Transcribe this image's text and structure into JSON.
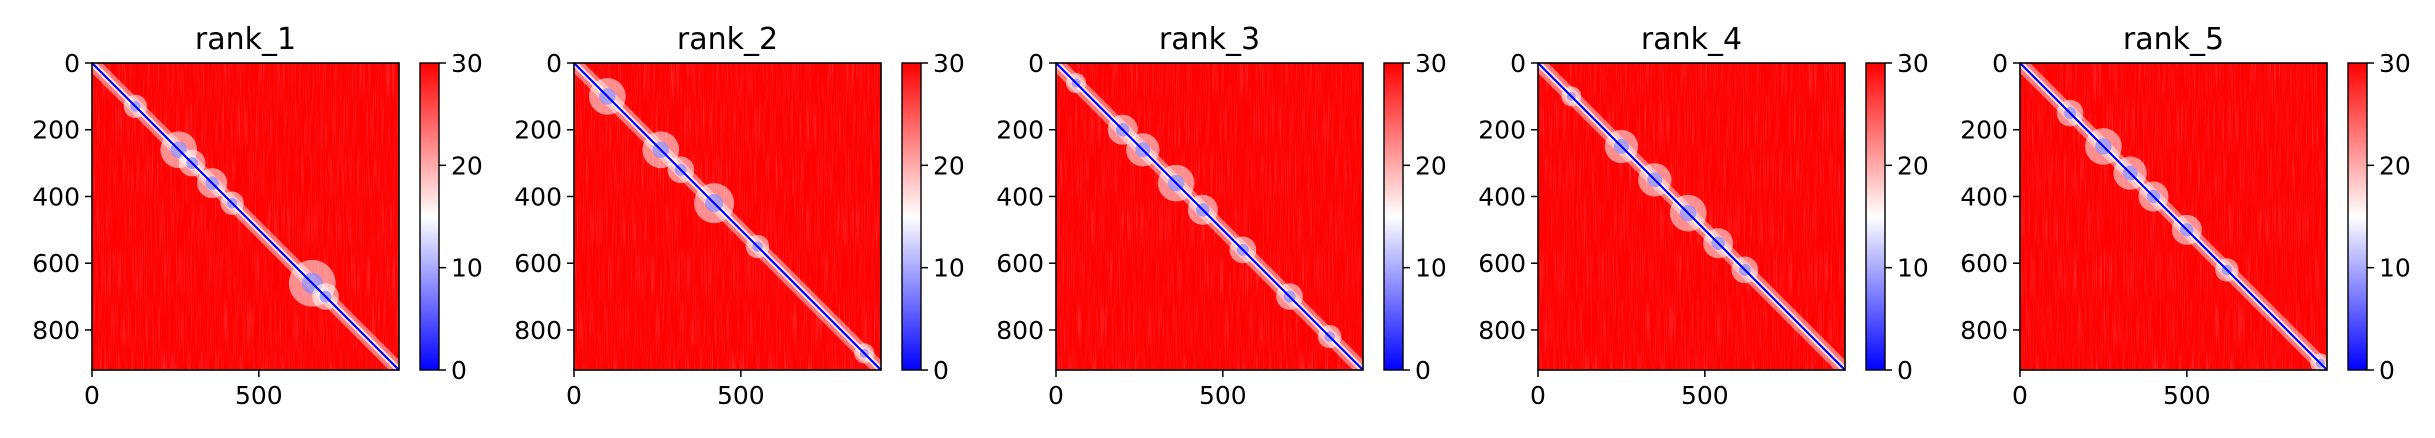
{
  "chart_data": [
    {
      "type": "heatmap",
      "title": "rank_1",
      "xticks": [
        "0",
        "500"
      ],
      "yticks": [
        "0",
        "200",
        "400",
        "600",
        "800"
      ],
      "xlim": [
        0,
        920
      ],
      "ylim": [
        920,
        0
      ],
      "colorbar": {
        "ticks": [
          "0",
          "10",
          "20",
          "30"
        ],
        "range": [
          0,
          30
        ]
      },
      "n": 920,
      "bubbles": [
        [
          130,
          35
        ],
        [
          260,
          55
        ],
        [
          300,
          40
        ],
        [
          360,
          45
        ],
        [
          420,
          35
        ],
        [
          660,
          70
        ],
        [
          700,
          40
        ]
      ]
    },
    {
      "type": "heatmap",
      "title": "rank_2",
      "xticks": [
        "0",
        "500"
      ],
      "yticks": [
        "0",
        "200",
        "400",
        "600",
        "800"
      ],
      "xlim": [
        0,
        920
      ],
      "ylim": [
        920,
        0
      ],
      "colorbar": {
        "ticks": [
          "0",
          "10",
          "20",
          "30"
        ],
        "range": [
          0,
          30
        ]
      },
      "n": 920,
      "bubbles": [
        [
          100,
          55
        ],
        [
          260,
          55
        ],
        [
          320,
          40
        ],
        [
          420,
          60
        ],
        [
          550,
          35
        ],
        [
          870,
          30
        ]
      ]
    },
    {
      "type": "heatmap",
      "title": "rank_3",
      "xticks": [
        "0",
        "500"
      ],
      "yticks": [
        "0",
        "200",
        "400",
        "600",
        "800"
      ],
      "xlim": [
        0,
        920
      ],
      "ylim": [
        920,
        0
      ],
      "colorbar": {
        "ticks": [
          "0",
          "10",
          "20",
          "30"
        ],
        "range": [
          0,
          30
        ]
      },
      "n": 920,
      "bubbles": [
        [
          60,
          30
        ],
        [
          200,
          45
        ],
        [
          260,
          50
        ],
        [
          360,
          55
        ],
        [
          440,
          45
        ],
        [
          560,
          40
        ],
        [
          700,
          40
        ],
        [
          820,
          35
        ]
      ]
    },
    {
      "type": "heatmap",
      "title": "rank_4",
      "xticks": [
        "0",
        "500"
      ],
      "yticks": [
        "0",
        "200",
        "400",
        "600",
        "800"
      ],
      "xlim": [
        0,
        920
      ],
      "ylim": [
        920,
        0
      ],
      "colorbar": {
        "ticks": [
          "0",
          "10",
          "20",
          "30"
        ],
        "range": [
          0,
          30
        ]
      },
      "n": 920,
      "bubbles": [
        [
          100,
          30
        ],
        [
          250,
          50
        ],
        [
          350,
          50
        ],
        [
          450,
          55
        ],
        [
          540,
          45
        ],
        [
          620,
          40
        ]
      ]
    },
    {
      "type": "heatmap",
      "title": "rank_5",
      "xticks": [
        "0",
        "500"
      ],
      "yticks": [
        "0",
        "200",
        "400",
        "600",
        "800"
      ],
      "xlim": [
        0,
        920
      ],
      "ylim": [
        920,
        0
      ],
      "colorbar": {
        "ticks": [
          "0",
          "10",
          "20",
          "30"
        ],
        "range": [
          0,
          30
        ]
      },
      "n": 920,
      "bubbles": [
        [
          150,
          40
        ],
        [
          250,
          55
        ],
        [
          330,
          50
        ],
        [
          400,
          45
        ],
        [
          500,
          45
        ],
        [
          620,
          35
        ],
        [
          900,
          30
        ]
      ]
    }
  ],
  "colors": {
    "low": "#0000ff",
    "mid": "#ffffff",
    "high": "#ff0000",
    "axis": "#000000"
  }
}
